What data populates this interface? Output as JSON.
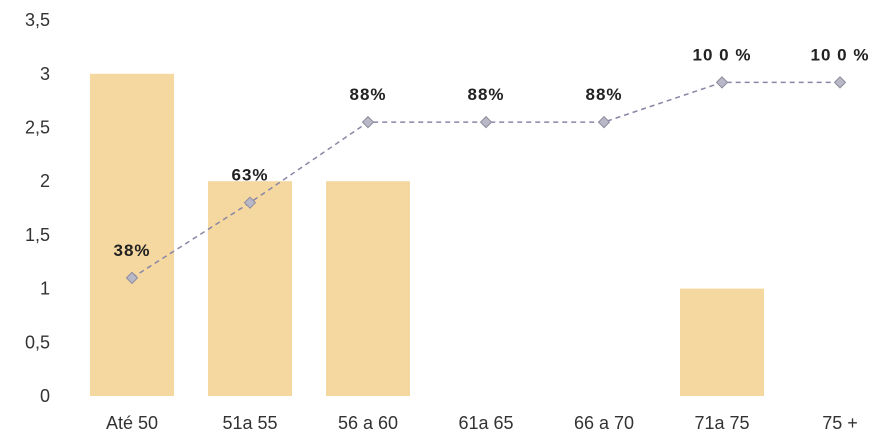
{
  "chart_data": {
    "type": "bar",
    "categories": [
      "Até 50",
      "51a 55",
      "56 a 60",
      "61a 65",
      "66 a 70",
      "71a 75",
      "75 +"
    ],
    "y_ticks": [
      "0",
      "0,5",
      "1",
      "1,5",
      "2",
      "2,5",
      "3",
      "3,5"
    ],
    "ylim": [
      0,
      3.5
    ],
    "grid": false,
    "legend": "none",
    "series": [
      {
        "type": "bar",
        "values": [
          3,
          2,
          2,
          0,
          0,
          1,
          0
        ],
        "color": "#f5d7a0"
      },
      {
        "type": "line",
        "style": "dashed-with-diamond-markers",
        "values": [
          1.1,
          1.8,
          2.55,
          2.55,
          2.55,
          2.92,
          2.92
        ],
        "labels": [
          "38%",
          "63%",
          "88%",
          "88%",
          "88%",
          "10 0 %",
          "10 0 %"
        ],
        "color": "#8a86a6",
        "marker_color": "#b8b8c8"
      }
    ],
    "xlabel": "",
    "ylabel": ""
  }
}
